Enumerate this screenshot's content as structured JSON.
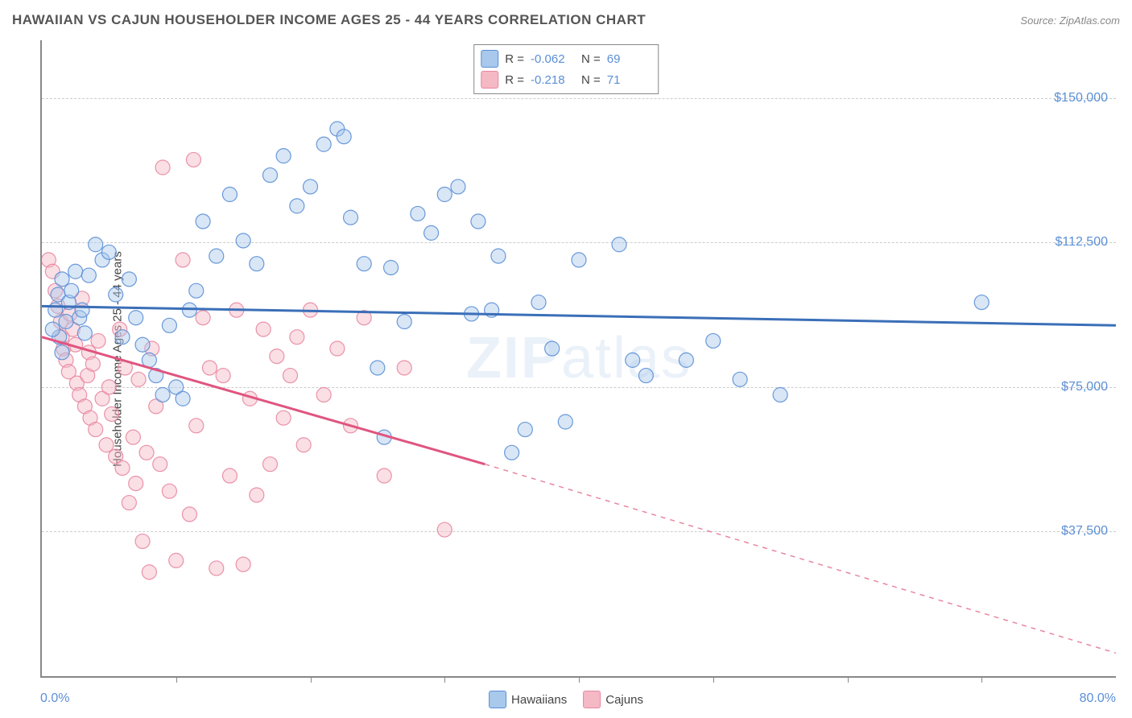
{
  "header": {
    "title": "HAWAIIAN VS CAJUN HOUSEHOLDER INCOME AGES 25 - 44 YEARS CORRELATION CHART",
    "source_label": "Source:",
    "source_value": "ZipAtlas.com"
  },
  "watermark": {
    "bold": "ZIP",
    "light": "atlas"
  },
  "chart": {
    "type": "scatter",
    "y_axis_label": "Householder Income Ages 25 - 44 years",
    "xlim": [
      0,
      80
    ],
    "ylim": [
      0,
      165000
    ],
    "x_tick_positions": [
      10,
      20,
      30,
      40,
      50,
      60,
      70
    ],
    "x_min_label": "0.0%",
    "x_max_label": "80.0%",
    "y_gridlines": [
      37500,
      75000,
      112500,
      150000
    ],
    "y_tick_labels": [
      "$37,500",
      "$75,000",
      "$112,500",
      "$150,000"
    ],
    "grid_color": "#cccccc",
    "axis_color": "#888888",
    "tick_label_color": "#5b8fd6",
    "background_color": "#ffffff",
    "marker_radius": 9,
    "marker_opacity": 0.45,
    "marker_stroke_opacity": 0.9,
    "line_width": 3,
    "series": [
      {
        "name": "Hawaiians",
        "fill_color": "#a8c8ec",
        "stroke_color": "#5b8fd6",
        "line_color": "#3b6fb8",
        "regression": {
          "R": -0.062,
          "N": 69
        },
        "trend_line": {
          "x1": 0,
          "y1": 96000,
          "x2": 80,
          "y2": 91000,
          "dash": "none"
        },
        "points": [
          [
            1.0,
            95000
          ],
          [
            1.2,
            99000
          ],
          [
            1.5,
            103000
          ],
          [
            1.3,
            88000
          ],
          [
            1.8,
            92000
          ],
          [
            0.8,
            90000
          ],
          [
            1.5,
            84000
          ],
          [
            2.0,
            97000
          ],
          [
            2.2,
            100000
          ],
          [
            2.5,
            105000
          ],
          [
            2.8,
            93000
          ],
          [
            3.0,
            95000
          ],
          [
            3.2,
            89000
          ],
          [
            3.5,
            104000
          ],
          [
            4.0,
            112000
          ],
          [
            4.5,
            108000
          ],
          [
            5.0,
            110000
          ],
          [
            5.5,
            99000
          ],
          [
            6.0,
            88000
          ],
          [
            6.5,
            103000
          ],
          [
            7.0,
            93000
          ],
          [
            7.5,
            86000
          ],
          [
            8.0,
            82000
          ],
          [
            8.5,
            78000
          ],
          [
            9.0,
            73000
          ],
          [
            9.5,
            91000
          ],
          [
            10.0,
            75000
          ],
          [
            10.5,
            72000
          ],
          [
            11.0,
            95000
          ],
          [
            11.5,
            100000
          ],
          [
            12.0,
            118000
          ],
          [
            13.0,
            109000
          ],
          [
            14.0,
            125000
          ],
          [
            15.0,
            113000
          ],
          [
            16.0,
            107000
          ],
          [
            17.0,
            130000
          ],
          [
            18.0,
            135000
          ],
          [
            19.0,
            122000
          ],
          [
            20.0,
            127000
          ],
          [
            21.0,
            138000
          ],
          [
            22.0,
            142000
          ],
          [
            22.5,
            140000
          ],
          [
            23.0,
            119000
          ],
          [
            24.0,
            107000
          ],
          [
            25.0,
            80000
          ],
          [
            25.5,
            62000
          ],
          [
            26.0,
            106000
          ],
          [
            27.0,
            92000
          ],
          [
            28.0,
            120000
          ],
          [
            29.0,
            115000
          ],
          [
            30.0,
            125000
          ],
          [
            31.0,
            127000
          ],
          [
            32.0,
            94000
          ],
          [
            32.5,
            118000
          ],
          [
            33.5,
            95000
          ],
          [
            34.0,
            109000
          ],
          [
            35.0,
            58000
          ],
          [
            36.0,
            64000
          ],
          [
            37.0,
            97000
          ],
          [
            38.0,
            85000
          ],
          [
            39.0,
            66000
          ],
          [
            40.0,
            108000
          ],
          [
            43.0,
            112000
          ],
          [
            44.0,
            82000
          ],
          [
            45.0,
            78000
          ],
          [
            48.0,
            82000
          ],
          [
            50.0,
            87000
          ],
          [
            52.0,
            77000
          ],
          [
            55.0,
            73000
          ],
          [
            70.0,
            97000
          ]
        ]
      },
      {
        "name": "Cajuns",
        "fill_color": "#f5b8c5",
        "stroke_color": "#e887a0",
        "line_color": "#e05580",
        "regression": {
          "R": -0.218,
          "N": 71
        },
        "trend_line_solid": {
          "x1": 0,
          "y1": 88000,
          "x2": 33,
          "y2": 55000
        },
        "trend_line_dashed": {
          "x1": 33,
          "y1": 55000,
          "x2": 80,
          "y2": 6000
        },
        "points": [
          [
            0.5,
            108000
          ],
          [
            0.8,
            105000
          ],
          [
            1.0,
            100000
          ],
          [
            1.2,
            96000
          ],
          [
            1.4,
            92000
          ],
          [
            1.5,
            88000
          ],
          [
            1.6,
            85000
          ],
          [
            1.8,
            82000
          ],
          [
            2.0,
            79000
          ],
          [
            2.1,
            94000
          ],
          [
            2.3,
            90000
          ],
          [
            2.5,
            86000
          ],
          [
            2.6,
            76000
          ],
          [
            2.8,
            73000
          ],
          [
            3.0,
            98000
          ],
          [
            3.2,
            70000
          ],
          [
            3.4,
            78000
          ],
          [
            3.5,
            84000
          ],
          [
            3.6,
            67000
          ],
          [
            3.8,
            81000
          ],
          [
            4.0,
            64000
          ],
          [
            4.2,
            87000
          ],
          [
            4.5,
            72000
          ],
          [
            4.8,
            60000
          ],
          [
            5.0,
            75000
          ],
          [
            5.2,
            68000
          ],
          [
            5.5,
            57000
          ],
          [
            5.8,
            90000
          ],
          [
            6.0,
            54000
          ],
          [
            6.2,
            80000
          ],
          [
            6.5,
            45000
          ],
          [
            6.8,
            62000
          ],
          [
            7.0,
            50000
          ],
          [
            7.2,
            77000
          ],
          [
            7.5,
            35000
          ],
          [
            7.8,
            58000
          ],
          [
            8.0,
            27000
          ],
          [
            8.2,
            85000
          ],
          [
            8.5,
            70000
          ],
          [
            8.8,
            55000
          ],
          [
            9.0,
            132000
          ],
          [
            9.5,
            48000
          ],
          [
            10.0,
            30000
          ],
          [
            10.5,
            108000
          ],
          [
            11.0,
            42000
          ],
          [
            11.3,
            134000
          ],
          [
            11.5,
            65000
          ],
          [
            12.0,
            93000
          ],
          [
            12.5,
            80000
          ],
          [
            13.0,
            28000
          ],
          [
            13.5,
            78000
          ],
          [
            14.0,
            52000
          ],
          [
            14.5,
            95000
          ],
          [
            15.0,
            29000
          ],
          [
            15.5,
            72000
          ],
          [
            16.0,
            47000
          ],
          [
            16.5,
            90000
          ],
          [
            17.0,
            55000
          ],
          [
            17.5,
            83000
          ],
          [
            18.0,
            67000
          ],
          [
            18.5,
            78000
          ],
          [
            19.0,
            88000
          ],
          [
            19.5,
            60000
          ],
          [
            20.0,
            95000
          ],
          [
            21.0,
            73000
          ],
          [
            22.0,
            85000
          ],
          [
            23.0,
            65000
          ],
          [
            24.0,
            93000
          ],
          [
            25.5,
            52000
          ],
          [
            27.0,
            80000
          ],
          [
            30.0,
            38000
          ]
        ]
      }
    ]
  },
  "bottom_legend": [
    {
      "label": "Hawaiians",
      "fill": "#a8c8ec",
      "stroke": "#5b8fd6"
    },
    {
      "label": "Cajuns",
      "fill": "#f5b8c5",
      "stroke": "#e887a0"
    }
  ]
}
